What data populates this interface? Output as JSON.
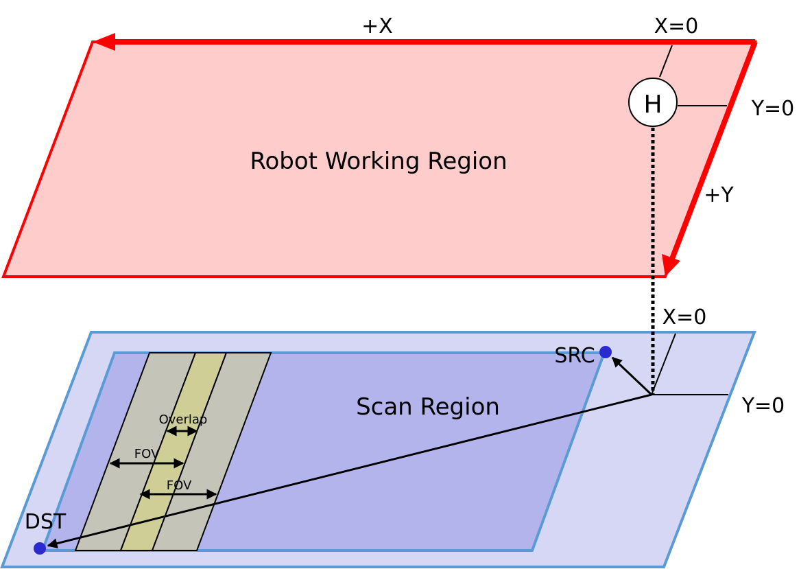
{
  "robot_region": {
    "label": "Robot Working Region",
    "fill_color": "#FFCCCC",
    "border_color": "#FF0000",
    "x_axis_label": "+X",
    "y_axis_label": "+Y",
    "x_zero_label": "X=0",
    "y_zero_label": "Y=0",
    "home_label": "H"
  },
  "scan_region": {
    "label": "Scan Region",
    "outer_fill_color": "#D5D7F5",
    "inner_fill_color": "#B3B4EC",
    "border_color": "#5B9BD5",
    "x_zero_label": "X=0",
    "y_zero_label": "Y=0",
    "src_label": "SRC",
    "dst_label": "DST",
    "point_color": "#2A2ACF",
    "strip_color": "#C4C4B8",
    "overlap_color": "#CECE96",
    "overlap_label": "Overlap",
    "fov_label_1": "FOV",
    "fov_label_2": "FOV"
  }
}
